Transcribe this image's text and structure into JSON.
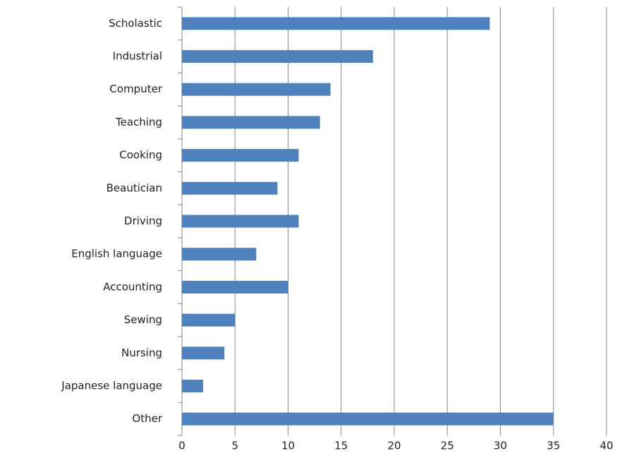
{
  "chart_data": {
    "type": "bar",
    "orientation": "horizontal",
    "categories": [
      "Scholastic",
      "Industrial",
      "Computer",
      "Teaching",
      "Cooking",
      "Beautician",
      "Driving",
      "English language",
      "Accounting",
      "Sewing",
      "Nursing",
      "Japanese language",
      "Other"
    ],
    "values": [
      29,
      18,
      14,
      13,
      11,
      9,
      11,
      7,
      10,
      5,
      4,
      2,
      35
    ],
    "color": "#4f81bd",
    "xlim": [
      0,
      40
    ],
    "xticks": [
      0,
      5,
      10,
      15,
      20,
      25,
      30,
      35,
      40
    ],
    "grid": true
  }
}
